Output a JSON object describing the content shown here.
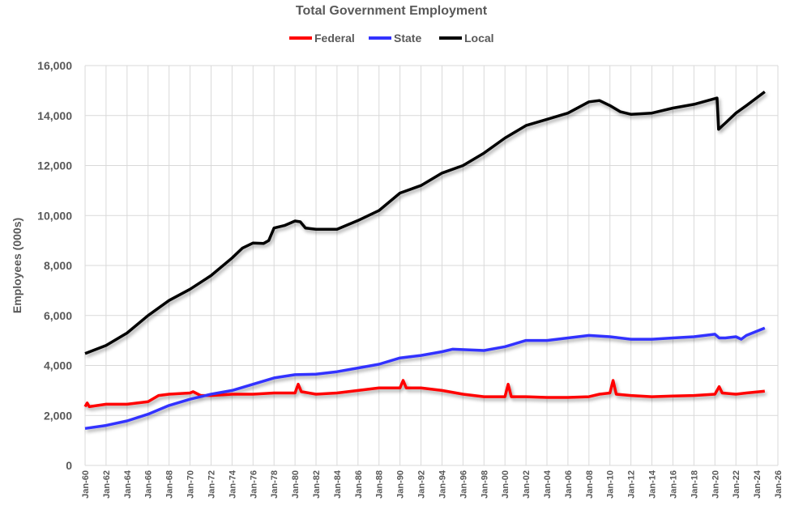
{
  "chart_data": {
    "type": "line",
    "title": "Total Government Employment",
    "ylabel": "Employees (000s)",
    "xlabel": "",
    "ylim": [
      0,
      16000
    ],
    "yticks": [
      "0",
      "2,000",
      "4,000",
      "6,000",
      "8,000",
      "10,000",
      "12,000",
      "14,000",
      "16,000"
    ],
    "xlim": [
      1960,
      2026
    ],
    "xticks": [
      "Jan-60",
      "Jan-62",
      "Jan-64",
      "Jan-66",
      "Jan-68",
      "Jan-70",
      "Jan-72",
      "Jan-74",
      "Jan-76",
      "Jan-78",
      "Jan-80",
      "Jan-82",
      "Jan-84",
      "Jan-86",
      "Jan-88",
      "Jan-90",
      "Jan-92",
      "Jan-94",
      "Jan-96",
      "Jan-98",
      "Jan-00",
      "Jan-02",
      "Jan-04",
      "Jan-06",
      "Jan-08",
      "Jan-10",
      "Jan-12",
      "Jan-14",
      "Jan-16",
      "Jan-18",
      "Jan-20",
      "Jan-22",
      "Jan-24",
      "Jan-26"
    ],
    "grid": true,
    "legend": "top",
    "series": [
      {
        "name": "Federal",
        "color": "#ff0000",
        "points": [
          [
            1960,
            2350
          ],
          [
            1960.2,
            2500
          ],
          [
            1960.4,
            2350
          ],
          [
            1962,
            2450
          ],
          [
            1964,
            2450
          ],
          [
            1966,
            2550
          ],
          [
            1967,
            2800
          ],
          [
            1968,
            2850
          ],
          [
            1970,
            2900
          ],
          [
            1970.3,
            2950
          ],
          [
            1971,
            2800
          ],
          [
            1972,
            2800
          ],
          [
            1974,
            2850
          ],
          [
            1976,
            2850
          ],
          [
            1978,
            2900
          ],
          [
            1980,
            2900
          ],
          [
            1980.3,
            3250
          ],
          [
            1980.6,
            2950
          ],
          [
            1982,
            2850
          ],
          [
            1984,
            2900
          ],
          [
            1986,
            3000
          ],
          [
            1988,
            3100
          ],
          [
            1990,
            3100
          ],
          [
            1990.3,
            3400
          ],
          [
            1990.6,
            3100
          ],
          [
            1992,
            3100
          ],
          [
            1994,
            3000
          ],
          [
            1996,
            2850
          ],
          [
            1998,
            2750
          ],
          [
            2000,
            2750
          ],
          [
            2000.3,
            3250
          ],
          [
            2000.6,
            2750
          ],
          [
            2002,
            2750
          ],
          [
            2004,
            2720
          ],
          [
            2006,
            2720
          ],
          [
            2008,
            2750
          ],
          [
            2009,
            2850
          ],
          [
            2010,
            2900
          ],
          [
            2010.3,
            3400
          ],
          [
            2010.6,
            2850
          ],
          [
            2012,
            2800
          ],
          [
            2014,
            2750
          ],
          [
            2016,
            2780
          ],
          [
            2018,
            2800
          ],
          [
            2020,
            2850
          ],
          [
            2020.4,
            3150
          ],
          [
            2020.7,
            2900
          ],
          [
            2022,
            2850
          ],
          [
            2023,
            2900
          ],
          [
            2024.75,
            2970
          ]
        ]
      },
      {
        "name": "State",
        "color": "#3333ff",
        "points": [
          [
            1960,
            1480
          ],
          [
            1962,
            1600
          ],
          [
            1964,
            1780
          ],
          [
            1966,
            2050
          ],
          [
            1968,
            2400
          ],
          [
            1970,
            2650
          ],
          [
            1972,
            2850
          ],
          [
            1974,
            3000
          ],
          [
            1976,
            3250
          ],
          [
            1978,
            3500
          ],
          [
            1980,
            3630
          ],
          [
            1982,
            3650
          ],
          [
            1984,
            3750
          ],
          [
            1986,
            3900
          ],
          [
            1988,
            4050
          ],
          [
            1990,
            4300
          ],
          [
            1992,
            4400
          ],
          [
            1994,
            4550
          ],
          [
            1995,
            4650
          ],
          [
            1998,
            4600
          ],
          [
            2000,
            4750
          ],
          [
            2002,
            5000
          ],
          [
            2004,
            5000
          ],
          [
            2006,
            5100
          ],
          [
            2008,
            5200
          ],
          [
            2010,
            5150
          ],
          [
            2012,
            5050
          ],
          [
            2014,
            5050
          ],
          [
            2016,
            5100
          ],
          [
            2018,
            5150
          ],
          [
            2020,
            5250
          ],
          [
            2020.4,
            5100
          ],
          [
            2021,
            5100
          ],
          [
            2022,
            5150
          ],
          [
            2022.5,
            5050
          ],
          [
            2023,
            5200
          ],
          [
            2024.75,
            5500
          ]
        ]
      },
      {
        "name": "Local",
        "color": "#000000",
        "points": [
          [
            1960,
            4480
          ],
          [
            1962,
            4800
          ],
          [
            1964,
            5300
          ],
          [
            1966,
            6000
          ],
          [
            1968,
            6600
          ],
          [
            1970,
            7050
          ],
          [
            1972,
            7600
          ],
          [
            1974,
            8300
          ],
          [
            1975,
            8700
          ],
          [
            1976,
            8900
          ],
          [
            1977,
            8880
          ],
          [
            1977.5,
            9000
          ],
          [
            1978,
            9500
          ],
          [
            1979,
            9600
          ],
          [
            1980,
            9780
          ],
          [
            1980.5,
            9750
          ],
          [
            1981,
            9500
          ],
          [
            1982,
            9450
          ],
          [
            1984,
            9450
          ],
          [
            1986,
            9800
          ],
          [
            1988,
            10200
          ],
          [
            1990,
            10900
          ],
          [
            1992,
            11200
          ],
          [
            1994,
            11700
          ],
          [
            1996,
            12000
          ],
          [
            1998,
            12500
          ],
          [
            2000,
            13100
          ],
          [
            2002,
            13600
          ],
          [
            2004,
            13850
          ],
          [
            2006,
            14100
          ],
          [
            2008,
            14550
          ],
          [
            2009,
            14600
          ],
          [
            2010,
            14400
          ],
          [
            2011,
            14150
          ],
          [
            2012,
            14050
          ],
          [
            2014,
            14100
          ],
          [
            2016,
            14300
          ],
          [
            2018,
            14450
          ],
          [
            2020.2,
            14700
          ],
          [
            2020.35,
            13450
          ],
          [
            2021,
            13700
          ],
          [
            2022,
            14100
          ],
          [
            2023,
            14400
          ],
          [
            2024.75,
            14950
          ]
        ]
      }
    ]
  }
}
